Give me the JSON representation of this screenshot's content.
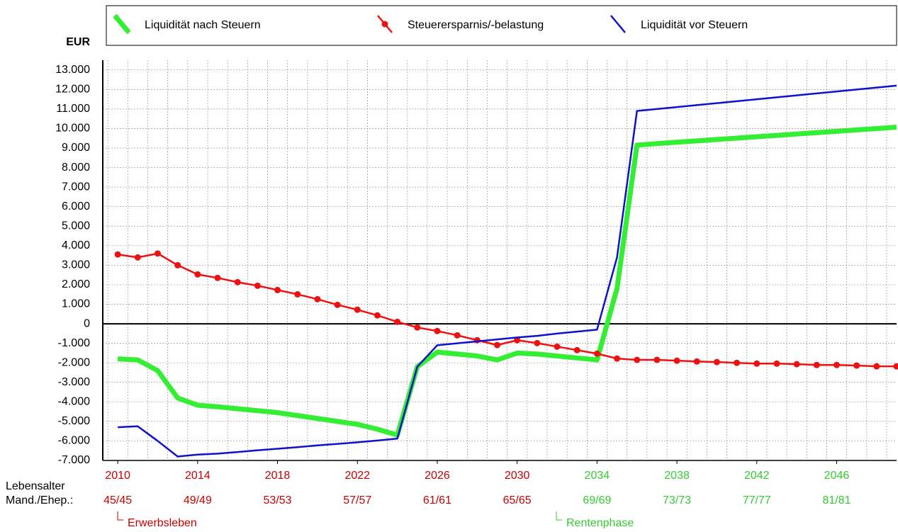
{
  "chart_data": {
    "type": "line",
    "y_unit": "EUR",
    "x": [
      2010,
      2011,
      2012,
      2013,
      2014,
      2015,
      2016,
      2017,
      2018,
      2019,
      2020,
      2021,
      2022,
      2023,
      2024,
      2025,
      2026,
      2027,
      2028,
      2029,
      2030,
      2031,
      2032,
      2033,
      2034,
      2035,
      2036,
      2037,
      2038,
      2039,
      2040,
      2041,
      2042,
      2043,
      2044,
      2045,
      2046,
      2047,
      2048,
      2049
    ],
    "xlim": [
      2009.25,
      2049
    ],
    "xticks": [
      2010,
      2014,
      2018,
      2022,
      2026,
      2030,
      2034,
      2038,
      2042,
      2046
    ],
    "age_title": [
      "Lebensalter",
      "Mand./Ehep.:"
    ],
    "age_labels": [
      "45/45",
      "49/49",
      "53/53",
      "57/57",
      "61/61",
      "65/65",
      "69/69",
      "73/73",
      "77/77",
      "81/81"
    ],
    "phases": [
      {
        "name": "Erwerbsleben",
        "from": 2010,
        "color": "#cc0000"
      },
      {
        "name": "Rentenphase",
        "from": 2034,
        "color": "#33cc33"
      }
    ],
    "ylim": [
      -7000,
      13500
    ],
    "yticks": [
      {
        "value": -7000,
        "label": "-7.000"
      },
      {
        "value": -6000,
        "label": "-6.000"
      },
      {
        "value": -5000,
        "label": "-5.000"
      },
      {
        "value": -4000,
        "label": "-4.000"
      },
      {
        "value": -3000,
        "label": "-3.000"
      },
      {
        "value": -2000,
        "label": "-2.000"
      },
      {
        "value": -1000,
        "label": "-1.000"
      },
      0,
      {
        "value": 1000,
        "label": "1.000"
      },
      {
        "value": 2000,
        "label": "2.000"
      },
      {
        "value": 3000,
        "label": "3.000"
      },
      {
        "value": 4000,
        "label": "4.000"
      },
      {
        "value": 5000,
        "label": "5.000"
      },
      {
        "value": 6000,
        "label": "6.000"
      },
      {
        "value": 7000,
        "label": "7.000"
      },
      {
        "value": 8000,
        "label": "8.000"
      },
      {
        "value": 9000,
        "label": "9.000"
      },
      {
        "value": 10000,
        "label": "10.000"
      },
      {
        "value": 11000,
        "label": "11.000"
      },
      {
        "value": 12000,
        "label": "12.000"
      },
      {
        "value": 13000,
        "label": "13.000"
      }
    ],
    "grid": true,
    "series": [
      {
        "name": "Liquidität nach Steuern",
        "color": "#33ee33",
        "width": 7,
        "markers": false,
        "values": [
          -1800,
          -1850,
          -2400,
          -3800,
          -4170,
          -4250,
          -4350,
          -4450,
          -4550,
          -4700,
          -4850,
          -5000,
          -5150,
          -5400,
          -5700,
          -2200,
          -1450,
          -1550,
          -1650,
          -1850,
          -1500,
          -1550,
          -1650,
          -1750,
          -1850,
          1800,
          9150,
          9230,
          9300,
          9370,
          9440,
          9510,
          9580,
          9650,
          9720,
          9790,
          9860,
          9930,
          10000,
          10070
        ]
      },
      {
        "name": "Steuerersparnis/-belastung",
        "color": "#ee1111",
        "width": 2.5,
        "markers": true,
        "values": [
          3550,
          3400,
          3600,
          3000,
          2530,
          2350,
          2130,
          1950,
          1730,
          1510,
          1260,
          970,
          720,
          430,
          100,
          -190,
          -370,
          -590,
          -840,
          -1090,
          -840,
          -990,
          -1170,
          -1350,
          -1530,
          -1780,
          -1850,
          -1850,
          -1890,
          -1930,
          -1960,
          -2000,
          -2040,
          -2040,
          -2070,
          -2110,
          -2110,
          -2140,
          -2180,
          -2180
        ]
      },
      {
        "name": "Liquidität vor Steuern",
        "color": "#1111cc",
        "width": 2.5,
        "markers": false,
        "values": [
          -5300,
          -5250,
          -6000,
          -6800,
          -6700,
          -6650,
          -6570,
          -6480,
          -6400,
          -6320,
          -6230,
          -6150,
          -6070,
          -5980,
          -5880,
          -2200,
          -1100,
          -1000,
          -900,
          -800,
          -700,
          -620,
          -500,
          -400,
          -300,
          3400,
          10900,
          11000,
          11100,
          11200,
          11300,
          11400,
          11500,
          11600,
          11700,
          11800,
          11900,
          12000,
          12100,
          12200
        ]
      }
    ]
  }
}
